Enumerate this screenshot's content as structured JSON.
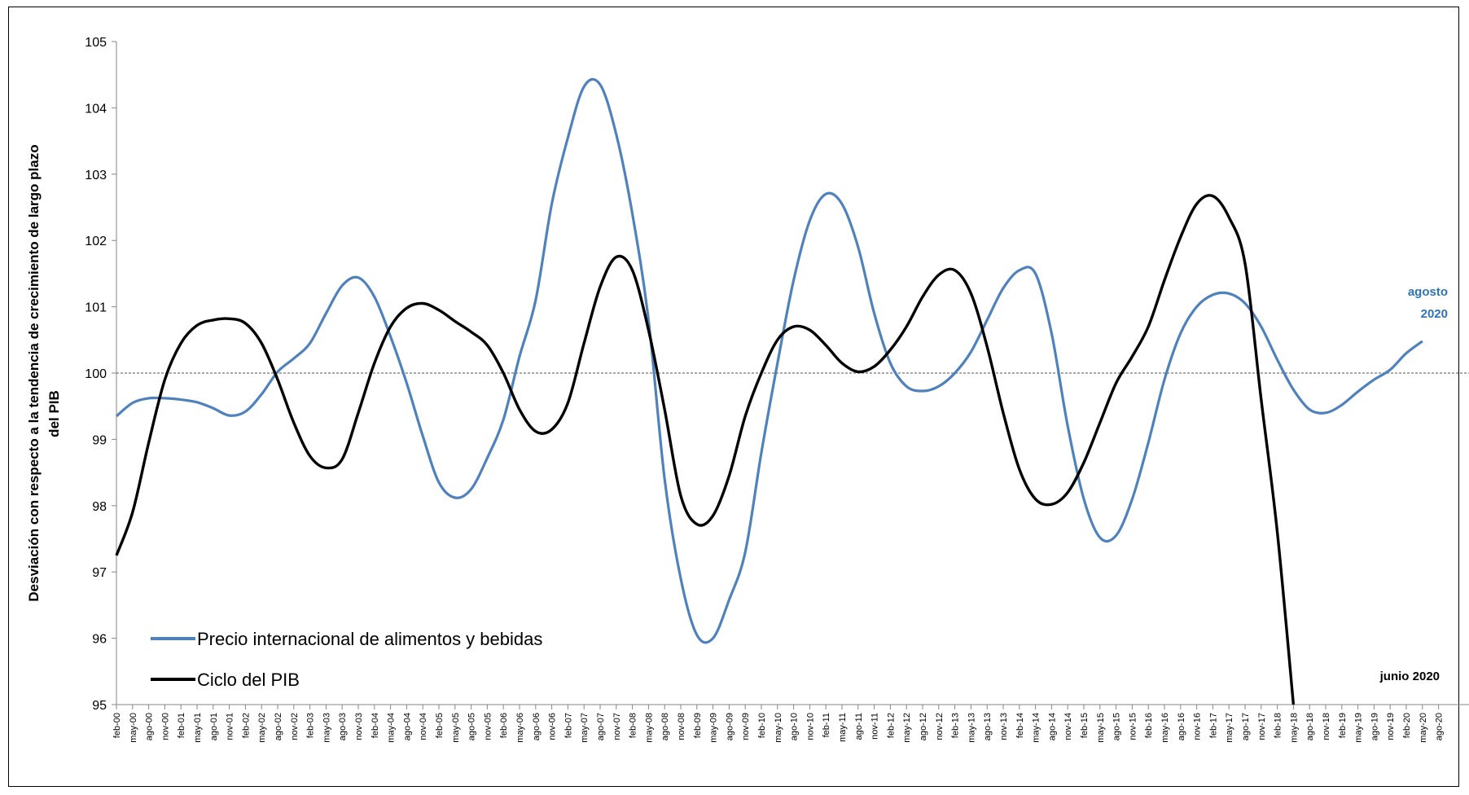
{
  "chart_data": {
    "type": "line",
    "ylabel_line1": "Desviación con respecto a la tendencia de crecimiento de largo plazo",
    "ylabel_line2": "del PIB",
    "ylim": [
      95,
      105
    ],
    "yticks": [
      95,
      96,
      97,
      98,
      99,
      100,
      101,
      102,
      103,
      104,
      105
    ],
    "reference_line": 100,
    "x_tick_labels": [
      "feb-00",
      "may-00",
      "ago-00",
      "nov-00",
      "feb-01",
      "may-01",
      "ago-01",
      "nov-01",
      "feb-02",
      "may-02",
      "ago-02",
      "nov-02",
      "feb-03",
      "may-03",
      "ago-03",
      "nov-03",
      "feb-04",
      "may-04",
      "ago-04",
      "nov-04",
      "feb-05",
      "may-05",
      "ago-05",
      "nov-05",
      "feb-06",
      "may-06",
      "ago-06",
      "nov-06",
      "feb-07",
      "may-07",
      "ago-07",
      "nov-07",
      "feb-08",
      "may-08",
      "ago-08",
      "nov-08",
      "feb-09",
      "may-09",
      "ago-09",
      "nov-09",
      "feb-10",
      "may-10",
      "ago-10",
      "nov-10",
      "feb-11",
      "may-11",
      "ago-11",
      "nov-11",
      "feb-12",
      "may-12",
      "ago-12",
      "nov-12",
      "feb-13",
      "may-13",
      "ago-13",
      "nov-13",
      "feb-14",
      "may-14",
      "ago-14",
      "nov-14",
      "feb-15",
      "may-15",
      "ago-15",
      "nov-15",
      "feb-16",
      "may-16",
      "ago-16",
      "nov-16",
      "feb-17",
      "may-17",
      "ago-17",
      "nov-17",
      "feb-18",
      "may-18",
      "ago-18",
      "nov-18",
      "feb-19",
      "may-19",
      "ago-19",
      "nov-19",
      "feb-20",
      "may-20",
      "ago-20"
    ],
    "series": [
      {
        "name": "Precio internacional de alimentos y bebidas",
        "color": "#4f81bd",
        "points": [
          [
            0,
            99.35
          ],
          [
            1,
            99.55
          ],
          [
            2,
            99.62
          ],
          [
            3,
            99.62
          ],
          [
            4,
            99.6
          ],
          [
            5,
            99.56
          ],
          [
            6,
            99.47
          ],
          [
            7,
            99.36
          ],
          [
            8,
            99.42
          ],
          [
            9,
            99.68
          ],
          [
            10,
            100.02
          ],
          [
            11,
            100.22
          ],
          [
            12,
            100.45
          ],
          [
            13,
            100.9
          ],
          [
            14,
            101.32
          ],
          [
            15,
            101.44
          ],
          [
            16,
            101.15
          ],
          [
            17,
            100.55
          ],
          [
            18,
            99.85
          ],
          [
            19,
            99.05
          ],
          [
            20,
            98.35
          ],
          [
            21,
            98.12
          ],
          [
            22,
            98.25
          ],
          [
            23,
            98.72
          ],
          [
            24,
            99.3
          ],
          [
            25,
            100.25
          ],
          [
            26,
            101.1
          ],
          [
            27,
            102.55
          ],
          [
            28,
            103.55
          ],
          [
            29,
            104.32
          ],
          [
            30,
            104.35
          ],
          [
            31,
            103.6
          ],
          [
            32,
            102.4
          ],
          [
            33,
            100.8
          ],
          [
            34,
            98.4
          ],
          [
            35,
            96.9
          ],
          [
            36,
            96.05
          ],
          [
            37,
            96.0
          ],
          [
            38,
            96.58
          ],
          [
            39,
            97.3
          ],
          [
            40,
            98.8
          ],
          [
            41,
            100.15
          ],
          [
            42,
            101.4
          ],
          [
            43,
            102.3
          ],
          [
            44,
            102.7
          ],
          [
            45,
            102.55
          ],
          [
            46,
            101.9
          ],
          [
            47,
            100.9
          ],
          [
            48,
            100.15
          ],
          [
            49,
            99.8
          ],
          [
            50,
            99.73
          ],
          [
            51,
            99.8
          ],
          [
            52,
            100.0
          ],
          [
            53,
            100.32
          ],
          [
            54,
            100.8
          ],
          [
            55,
            101.28
          ],
          [
            56,
            101.55
          ],
          [
            57,
            101.5
          ],
          [
            58,
            100.6
          ],
          [
            59,
            99.2
          ],
          [
            60,
            98.1
          ],
          [
            61,
            97.52
          ],
          [
            62,
            97.55
          ],
          [
            63,
            98.1
          ],
          [
            64,
            98.95
          ],
          [
            65,
            99.9
          ],
          [
            66,
            100.6
          ],
          [
            67,
            101.0
          ],
          [
            68,
            101.18
          ],
          [
            69,
            101.2
          ],
          [
            70,
            101.05
          ],
          [
            71,
            100.7
          ],
          [
            72,
            100.2
          ],
          [
            73,
            99.75
          ],
          [
            74,
            99.45
          ],
          [
            75,
            99.4
          ],
          [
            76,
            99.52
          ],
          [
            77,
            99.72
          ],
          [
            78,
            99.9
          ],
          [
            79,
            100.05
          ],
          [
            80,
            100.3
          ],
          [
            81,
            100.48
          ]
        ]
      },
      {
        "name": "Ciclo del PIB",
        "color": "#000000",
        "points": [
          [
            0,
            97.25
          ],
          [
            1,
            97.9
          ],
          [
            2,
            98.95
          ],
          [
            3,
            99.9
          ],
          [
            4,
            100.45
          ],
          [
            5,
            100.72
          ],
          [
            6,
            100.8
          ],
          [
            7,
            100.82
          ],
          [
            8,
            100.75
          ],
          [
            9,
            100.45
          ],
          [
            10,
            99.9
          ],
          [
            11,
            99.25
          ],
          [
            12,
            98.75
          ],
          [
            13,
            98.57
          ],
          [
            14,
            98.7
          ],
          [
            15,
            99.4
          ],
          [
            16,
            100.15
          ],
          [
            17,
            100.7
          ],
          [
            18,
            100.98
          ],
          [
            19,
            101.05
          ],
          [
            20,
            100.95
          ],
          [
            21,
            100.78
          ],
          [
            22,
            100.62
          ],
          [
            23,
            100.42
          ],
          [
            24,
            100.0
          ],
          [
            25,
            99.45
          ],
          [
            26,
            99.12
          ],
          [
            27,
            99.15
          ],
          [
            28,
            99.55
          ],
          [
            29,
            100.45
          ],
          [
            30,
            101.3
          ],
          [
            31,
            101.75
          ],
          [
            32,
            101.55
          ],
          [
            33,
            100.65
          ],
          [
            34,
            99.45
          ],
          [
            35,
            98.15
          ],
          [
            36,
            97.72
          ],
          [
            37,
            97.85
          ],
          [
            38,
            98.45
          ],
          [
            39,
            99.35
          ],
          [
            40,
            100.0
          ],
          [
            41,
            100.5
          ],
          [
            42,
            100.7
          ],
          [
            43,
            100.65
          ],
          [
            44,
            100.42
          ],
          [
            45,
            100.15
          ],
          [
            46,
            100.02
          ],
          [
            47,
            100.1
          ],
          [
            48,
            100.35
          ],
          [
            49,
            100.7
          ],
          [
            50,
            101.15
          ],
          [
            51,
            101.48
          ],
          [
            52,
            101.55
          ],
          [
            53,
            101.2
          ],
          [
            54,
            100.4
          ],
          [
            55,
            99.4
          ],
          [
            56,
            98.55
          ],
          [
            57,
            98.1
          ],
          [
            58,
            98.02
          ],
          [
            59,
            98.2
          ],
          [
            60,
            98.65
          ],
          [
            61,
            99.25
          ],
          [
            62,
            99.85
          ],
          [
            63,
            100.25
          ],
          [
            64,
            100.7
          ],
          [
            65,
            101.4
          ],
          [
            66,
            102.05
          ],
          [
            67,
            102.55
          ],
          [
            68,
            102.67
          ],
          [
            69,
            102.35
          ],
          [
            70,
            101.65
          ],
          [
            71,
            99.6
          ],
          [
            72,
            97.6
          ],
          [
            73,
            95.0
          ]
        ]
      }
    ],
    "annotations": [
      {
        "text_line1": "agosto",
        "text_line2": "2020",
        "color": "#2e74b5"
      },
      {
        "text": "junio 2020",
        "color": "#000000"
      }
    ]
  }
}
